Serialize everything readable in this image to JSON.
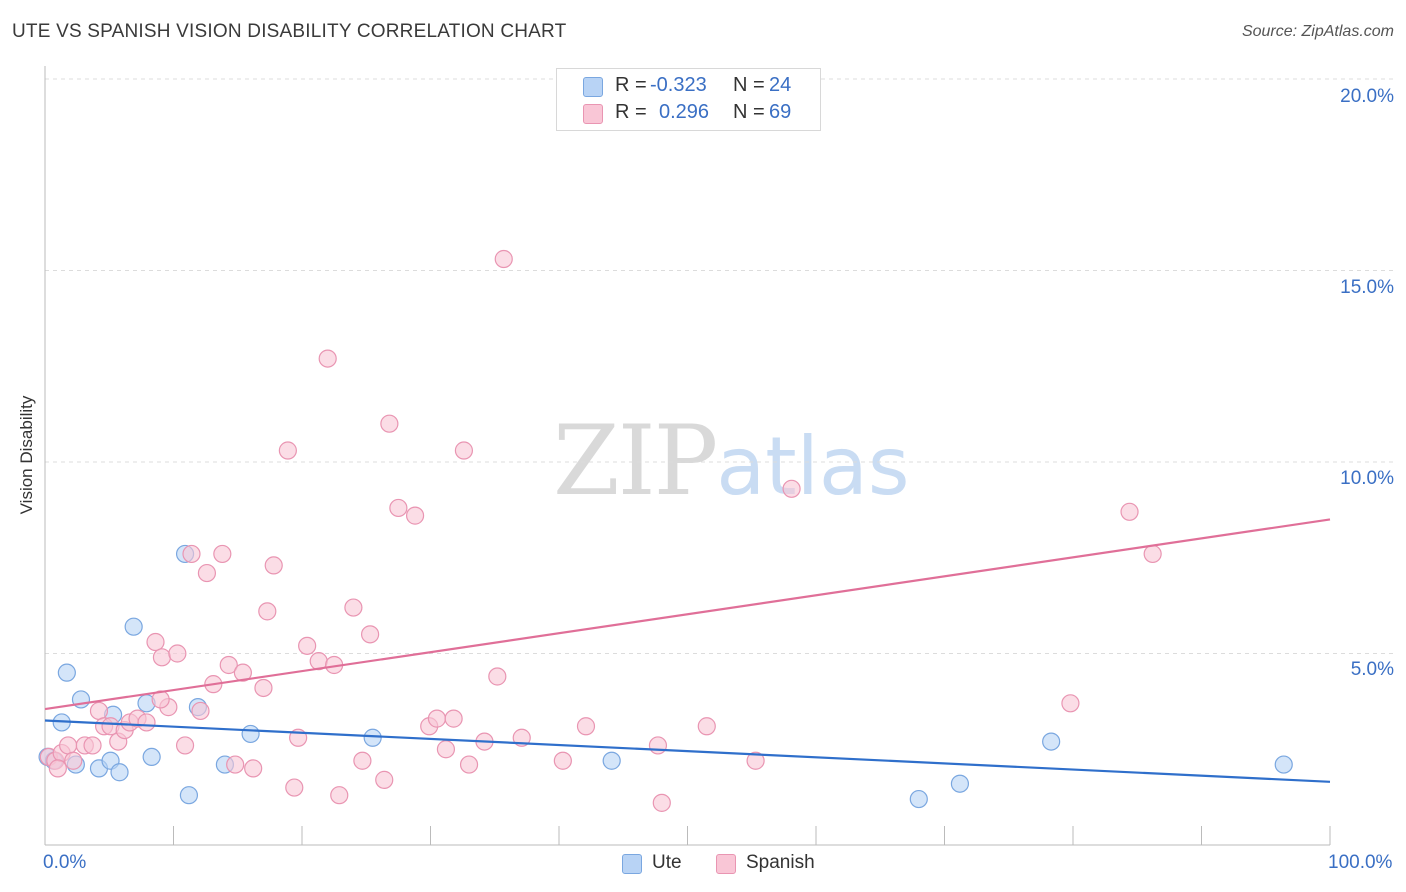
{
  "title": "UTE VS SPANISH VISION DISABILITY CORRELATION CHART",
  "source": "Source: ZipAtlas.com",
  "watermark": {
    "zip": "ZIP",
    "atlas": "atlas"
  },
  "legend": {
    "ute": {
      "r_label": "R =",
      "r_value": "-0.323",
      "n_label": "N =",
      "n_value": "24"
    },
    "spanish": {
      "r_label": "R =",
      "r_value": "0.296",
      "n_label": "N =",
      "n_value": "69"
    }
  },
  "colors": {
    "ute_fill": "#b8d3f5",
    "ute_stroke": "#7aa7e0",
    "ute_line": "#2f6fcb",
    "spanish_fill": "#f9c6d6",
    "spanish_stroke": "#e995b2",
    "spanish_line": "#e06f98",
    "tick_text": "#3a6fc4"
  },
  "chart_data": {
    "type": "scatter",
    "title": "UTE VS SPANISH VISION DISABILITY CORRELATION CHART",
    "ylabel": "Vision Disability",
    "xlabel": "",
    "xlim": [
      0,
      100
    ],
    "ylim": [
      0,
      20
    ],
    "x_tick_labels": [
      "0.0%",
      "100.0%"
    ],
    "y_tick_labels": [
      "5.0%",
      "10.0%",
      "15.0%",
      "20.0%"
    ],
    "y_ticks": [
      5,
      10,
      15,
      20
    ],
    "grid": true,
    "legend_position": "top-center",
    "series": [
      {
        "name": "Ute",
        "points": [
          [
            0.2,
            2.3
          ],
          [
            1.3,
            3.2
          ],
          [
            1.7,
            4.5
          ],
          [
            2.4,
            2.1
          ],
          [
            2.8,
            3.8
          ],
          [
            4.2,
            2.0
          ],
          [
            5.1,
            2.2
          ],
          [
            5.3,
            3.4
          ],
          [
            5.8,
            1.9
          ],
          [
            6.9,
            5.7
          ],
          [
            7.9,
            3.7
          ],
          [
            8.3,
            2.3
          ],
          [
            10.9,
            7.6
          ],
          [
            11.2,
            1.3
          ],
          [
            11.9,
            3.6
          ],
          [
            14.0,
            2.1
          ],
          [
            16.0,
            2.9
          ],
          [
            25.5,
            2.8
          ],
          [
            44.1,
            2.2
          ],
          [
            68.0,
            1.2
          ],
          [
            71.2,
            1.6
          ],
          [
            78.3,
            2.7
          ],
          [
            96.4,
            2.1
          ],
          [
            0.7,
            2.2
          ]
        ],
        "trend": {
          "x": [
            0,
            100
          ],
          "y": [
            3.25,
            1.65
          ]
        }
      },
      {
        "name": "Spanish",
        "points": [
          [
            0.3,
            2.3
          ],
          [
            0.8,
            2.2
          ],
          [
            1.3,
            2.4
          ],
          [
            1.8,
            2.6
          ],
          [
            2.2,
            2.2
          ],
          [
            3.1,
            2.6
          ],
          [
            3.7,
            2.6
          ],
          [
            4.2,
            3.5
          ],
          [
            4.6,
            3.1
          ],
          [
            5.1,
            3.1
          ],
          [
            5.7,
            2.7
          ],
          [
            6.2,
            3.0
          ],
          [
            6.6,
            3.2
          ],
          [
            7.2,
            3.3
          ],
          [
            7.9,
            3.2
          ],
          [
            8.6,
            5.3
          ],
          [
            9.1,
            4.9
          ],
          [
            9.6,
            3.6
          ],
          [
            10.3,
            5.0
          ],
          [
            10.9,
            2.6
          ],
          [
            11.4,
            7.6
          ],
          [
            12.1,
            3.5
          ],
          [
            12.6,
            7.1
          ],
          [
            13.1,
            4.2
          ],
          [
            13.8,
            7.6
          ],
          [
            14.3,
            4.7
          ],
          [
            14.8,
            2.1
          ],
          [
            15.4,
            4.5
          ],
          [
            16.2,
            2.0
          ],
          [
            17.0,
            4.1
          ],
          [
            17.3,
            6.1
          ],
          [
            17.8,
            7.3
          ],
          [
            18.9,
            10.3
          ],
          [
            19.4,
            1.5
          ],
          [
            19.7,
            2.8
          ],
          [
            20.4,
            5.2
          ],
          [
            21.3,
            4.8
          ],
          [
            22.0,
            12.7
          ],
          [
            22.5,
            4.7
          ],
          [
            22.9,
            1.3
          ],
          [
            24.0,
            6.2
          ],
          [
            24.7,
            2.2
          ],
          [
            25.3,
            5.5
          ],
          [
            26.4,
            1.7
          ],
          [
            26.8,
            11.0
          ],
          [
            27.5,
            8.8
          ],
          [
            28.8,
            8.6
          ],
          [
            29.9,
            3.1
          ],
          [
            30.5,
            3.3
          ],
          [
            31.8,
            3.3
          ],
          [
            32.6,
            10.3
          ],
          [
            33.0,
            2.1
          ],
          [
            34.2,
            2.7
          ],
          [
            35.2,
            4.4
          ],
          [
            35.7,
            15.3
          ],
          [
            37.1,
            2.8
          ],
          [
            40.3,
            2.2
          ],
          [
            42.1,
            3.1
          ],
          [
            47.7,
            2.6
          ],
          [
            48.0,
            1.1
          ],
          [
            51.5,
            3.1
          ],
          [
            55.3,
            2.2
          ],
          [
            58.1,
            9.3
          ],
          [
            79.8,
            3.7
          ],
          [
            84.4,
            8.7
          ],
          [
            86.2,
            7.6
          ],
          [
            31.2,
            2.5
          ],
          [
            1.0,
            2.0
          ],
          [
            9.0,
            3.8
          ]
        ],
        "trend": {
          "x": [
            0,
            100
          ],
          "y": [
            3.55,
            8.5
          ]
        }
      }
    ]
  },
  "bottom_legend": {
    "ute": "Ute",
    "spanish": "Spanish"
  }
}
